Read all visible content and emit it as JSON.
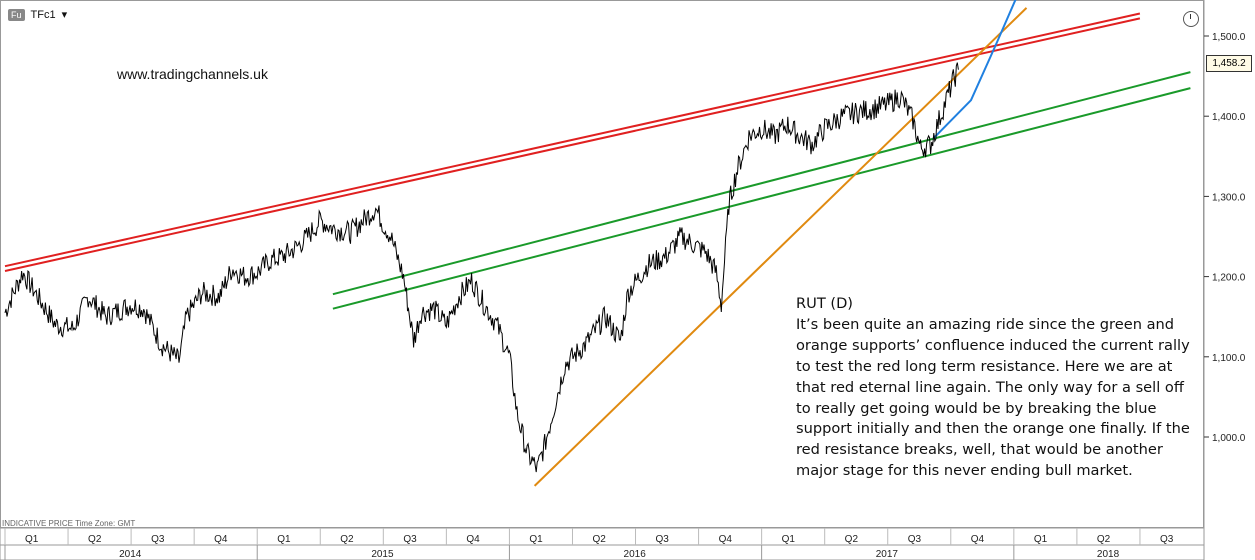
{
  "header": {
    "badge": "Fu",
    "ticker": "TFc1",
    "dropdown_glyph": "▾"
  },
  "watermark": "www.tradingchannels.uk",
  "commentary": {
    "title": "RUT (D)",
    "body": "It’s been quite an amazing ride since the green and orange supports’ confluence induced the current rally to test the red long term resistance. Here we are at that red eternal line again. The only way for a sell off to really get going would be by breaking the blue support initially and then the orange one finally. If the red resistance breaks, well, that would be another major stage for this never ending bull market."
  },
  "footer": {
    "indicative": "INDICATIVE PRICE",
    "timezone": "Time Zone: GMT"
  },
  "last_price": "1,458.2",
  "chart_data": {
    "type": "line",
    "y_ticks": [
      "1,500.0",
      "1,400.0",
      "1,300.0",
      "1,200.0",
      "1,100.0",
      "1,000.0"
    ],
    "y_tick_values": [
      1500,
      1400,
      1300,
      1200,
      1100,
      1000
    ],
    "quarters": [
      "Q1",
      "Q2",
      "Q3",
      "Q4",
      "Q1",
      "Q2",
      "Q3",
      "Q4",
      "Q1",
      "Q2",
      "Q3",
      "Q4",
      "Q1",
      "Q2",
      "Q3",
      "Q4",
      "Q1",
      "Q2",
      "Q3"
    ],
    "years": [
      "2014",
      "2015",
      "2016",
      "2017",
      "2018"
    ],
    "series": [
      {
        "values": [
          [
            2014.0,
            1155
          ],
          [
            2014.02,
            1170
          ],
          [
            2014.07,
            1205
          ],
          [
            2014.12,
            1180
          ],
          [
            2014.2,
            1140
          ],
          [
            2014.27,
            1135
          ],
          [
            2014.33,
            1175
          ],
          [
            2014.4,
            1150
          ],
          [
            2014.5,
            1165
          ],
          [
            2014.55,
            1160
          ],
          [
            2014.62,
            1115
          ],
          [
            2014.69,
            1095
          ],
          [
            2014.72,
            1150
          ],
          [
            2014.78,
            1180
          ],
          [
            2014.85,
            1175
          ],
          [
            2014.9,
            1210
          ],
          [
            2014.95,
            1200
          ],
          [
            2015.0,
            1205
          ],
          [
            2015.05,
            1220
          ],
          [
            2015.1,
            1225
          ],
          [
            2015.15,
            1235
          ],
          [
            2015.2,
            1250
          ],
          [
            2015.25,
            1270
          ],
          [
            2015.3,
            1260
          ],
          [
            2015.37,
            1255
          ],
          [
            2015.42,
            1270
          ],
          [
            2015.47,
            1285
          ],
          [
            2015.5,
            1265
          ],
          [
            2015.53,
            1250
          ],
          [
            2015.58,
            1200
          ],
          [
            2015.62,
            1120
          ],
          [
            2015.65,
            1155
          ],
          [
            2015.7,
            1160
          ],
          [
            2015.75,
            1140
          ],
          [
            2015.8,
            1175
          ],
          [
            2015.85,
            1195
          ],
          [
            2015.9,
            1165
          ],
          [
            2015.95,
            1140
          ],
          [
            2016.0,
            1100
          ],
          [
            2016.03,
            1030
          ],
          [
            2016.07,
            980
          ],
          [
            2016.11,
            960
          ],
          [
            2016.14,
            990
          ],
          [
            2016.18,
            1040
          ],
          [
            2016.22,
            1090
          ],
          [
            2016.3,
            1115
          ],
          [
            2016.38,
            1150
          ],
          [
            2016.44,
            1120
          ],
          [
            2016.47,
            1180
          ],
          [
            2016.55,
            1215
          ],
          [
            2016.62,
            1225
          ],
          [
            2016.68,
            1250
          ],
          [
            2016.73,
            1240
          ],
          [
            2016.78,
            1230
          ],
          [
            2016.82,
            1205
          ],
          [
            2016.84,
            1165
          ],
          [
            2016.87,
            1290
          ],
          [
            2016.9,
            1330
          ],
          [
            2016.95,
            1375
          ],
          [
            2017.0,
            1385
          ],
          [
            2017.05,
            1375
          ],
          [
            2017.1,
            1390
          ],
          [
            2017.15,
            1375
          ],
          [
            2017.2,
            1365
          ],
          [
            2017.25,
            1385
          ],
          [
            2017.32,
            1400
          ],
          [
            2017.38,
            1405
          ],
          [
            2017.45,
            1410
          ],
          [
            2017.5,
            1415
          ],
          [
            2017.55,
            1425
          ],
          [
            2017.6,
            1395
          ],
          [
            2017.63,
            1360
          ],
          [
            2017.67,
            1365
          ],
          [
            2017.72,
            1410
          ],
          [
            2017.76,
            1445
          ],
          [
            2017.78,
            1458
          ]
        ]
      }
    ],
    "trendlines": [
      {
        "color": "#e02020",
        "points": [
          [
            2014.0,
            1213
          ],
          [
            2018.5,
            1528
          ]
        ]
      },
      {
        "color": "#e02020",
        "points": [
          [
            2014.0,
            1207
          ],
          [
            2018.5,
            1522
          ]
        ]
      },
      {
        "color": "#1a9a2a",
        "points": [
          [
            2015.3,
            1178
          ],
          [
            2018.7,
            1455
          ]
        ]
      },
      {
        "color": "#1a9a2a",
        "points": [
          [
            2015.3,
            1160
          ],
          [
            2018.7,
            1435
          ]
        ]
      },
      {
        "color": "#e08a10",
        "points": [
          [
            2016.1,
            939
          ],
          [
            2018.05,
            1535
          ]
        ]
      },
      {
        "color": "#2080e0",
        "points": [
          [
            2017.68,
            1372
          ],
          [
            2017.83,
            1420
          ],
          [
            2017.93,
            1490
          ],
          [
            2018.02,
            1555
          ]
        ]
      }
    ],
    "ylim": [
      900,
      1540
    ]
  }
}
